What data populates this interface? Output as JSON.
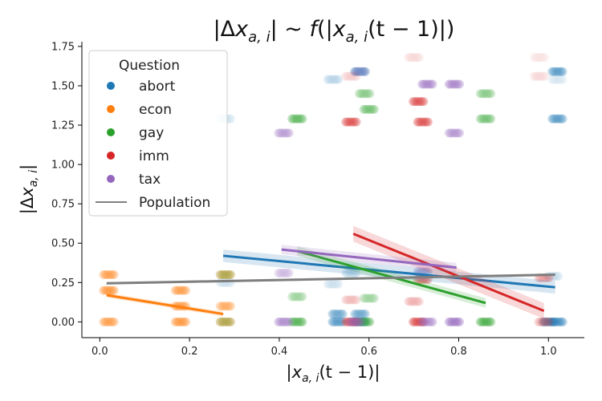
{
  "chart_data": {
    "type": "scatter",
    "title": "|Δx_{a,i}| ~ f(|x_{a,i}(t − 1)|)",
    "title_parts": {
      "pre": "|Δ",
      "x1": "x",
      "sub1": "a, i",
      "mid": "| ~ ",
      "f": "f",
      "open": "(|",
      "x2": "x",
      "sub2": "a, i",
      "t": "(t − 1)|)"
    },
    "xlabel_parts": {
      "pre": "|",
      "x": "x",
      "sub": "a, i",
      "t": "(t − 1)|"
    },
    "ylabel_parts": {
      "pre": "|Δ",
      "x": "x",
      "sub": "a, i",
      "post": "|"
    },
    "xlim": [
      -0.04,
      1.08
    ],
    "ylim": [
      -0.1,
      1.78
    ],
    "xticks": [
      0.0,
      0.2,
      0.4,
      0.6,
      0.8,
      1.0
    ],
    "xtick_labels": [
      "0.0",
      "0.2",
      "0.4",
      "0.6",
      "0.8",
      "1.0"
    ],
    "yticks": [
      0.0,
      0.25,
      0.5,
      0.75,
      1.0,
      1.25,
      1.5,
      1.75
    ],
    "ytick_labels": [
      "0.00",
      "0.25",
      "0.50",
      "0.75",
      "1.00",
      "1.25",
      "1.50",
      "1.75"
    ],
    "legend": {
      "title": "Question",
      "position": "top-left",
      "entries": [
        {
          "label": "abort",
          "color": "#1f77b4",
          "kind": "point"
        },
        {
          "label": "econ",
          "color": "#ff7f0e",
          "kind": "point"
        },
        {
          "label": "gay",
          "color": "#2ca02c",
          "kind": "point"
        },
        {
          "label": "imm",
          "color": "#d62728",
          "kind": "point"
        },
        {
          "label": "tax",
          "color": "#9467bd",
          "kind": "point"
        },
        {
          "label": "Population",
          "color": "#7f7f7f",
          "kind": "line"
        }
      ]
    },
    "series": [
      {
        "name": "abort",
        "color": "#1f77b4",
        "points": [
          {
            "x": 0.28,
            "y": 1.29,
            "a": 0.25
          },
          {
            "x": 0.52,
            "y": 1.54,
            "a": 0.35
          },
          {
            "x": 0.58,
            "y": 1.59,
            "a": 0.8
          },
          {
            "x": 1.02,
            "y": 1.59,
            "a": 0.8
          },
          {
            "x": 1.02,
            "y": 1.29,
            "a": 0.8
          },
          {
            "x": 1.02,
            "y": 1.54,
            "a": 0.2
          },
          {
            "x": 0.52,
            "y": 0.24,
            "a": 0.25
          },
          {
            "x": 0.56,
            "y": 0.31,
            "a": 0.35
          },
          {
            "x": 0.53,
            "y": 0.05,
            "a": 0.7
          },
          {
            "x": 0.58,
            "y": 0.05,
            "a": 0.7
          },
          {
            "x": 0.58,
            "y": 0.0,
            "a": 0.8
          },
          {
            "x": 0.53,
            "y": 0.0,
            "a": 0.8
          },
          {
            "x": 1.02,
            "y": 0.0,
            "a": 0.9
          },
          {
            "x": 1.0,
            "y": 0.0,
            "a": 0.9
          },
          {
            "x": 0.28,
            "y": 0.25,
            "a": 0.25
          },
          {
            "x": 0.72,
            "y": 0.31,
            "a": 0.3
          },
          {
            "x": 1.01,
            "y": 0.29,
            "a": 0.3
          }
        ]
      },
      {
        "name": "econ",
        "color": "#ff7f0e",
        "points": [
          {
            "x": 0.02,
            "y": 0.3,
            "a": 0.8
          },
          {
            "x": 0.02,
            "y": 0.2,
            "a": 0.85
          },
          {
            "x": 0.02,
            "y": 0.0,
            "a": 0.8
          },
          {
            "x": 0.18,
            "y": 0.2,
            "a": 0.8
          },
          {
            "x": 0.18,
            "y": 0.1,
            "a": 0.8
          },
          {
            "x": 0.18,
            "y": 0.0,
            "a": 0.85
          },
          {
            "x": 0.28,
            "y": 0.3,
            "a": 0.7
          },
          {
            "x": 0.28,
            "y": 0.1,
            "a": 0.7
          },
          {
            "x": 0.28,
            "y": 0.0,
            "a": 0.7
          }
        ]
      },
      {
        "name": "gay",
        "color": "#2ca02c",
        "points": [
          {
            "x": 0.44,
            "y": 1.29,
            "a": 0.8
          },
          {
            "x": 0.59,
            "y": 1.45,
            "a": 0.6
          },
          {
            "x": 0.6,
            "y": 1.35,
            "a": 0.7
          },
          {
            "x": 0.86,
            "y": 1.45,
            "a": 0.6
          },
          {
            "x": 0.86,
            "y": 1.29,
            "a": 0.7
          },
          {
            "x": 0.44,
            "y": 0.16,
            "a": 0.5
          },
          {
            "x": 0.6,
            "y": 0.15,
            "a": 0.5
          },
          {
            "x": 0.44,
            "y": 0.0,
            "a": 0.85
          },
          {
            "x": 0.59,
            "y": 0.0,
            "a": 0.85
          },
          {
            "x": 0.86,
            "y": 0.0,
            "a": 0.9
          },
          {
            "x": 0.28,
            "y": 0.3,
            "a": 0.4
          },
          {
            "x": 0.28,
            "y": 0.0,
            "a": 0.4
          }
        ]
      },
      {
        "name": "imm",
        "color": "#d62728",
        "points": [
          {
            "x": 0.56,
            "y": 1.27,
            "a": 0.85
          },
          {
            "x": 0.71,
            "y": 1.4,
            "a": 0.85
          },
          {
            "x": 0.72,
            "y": 1.27,
            "a": 0.85
          },
          {
            "x": 0.56,
            "y": 1.56,
            "a": 0.25
          },
          {
            "x": 0.7,
            "y": 1.68,
            "a": 0.2
          },
          {
            "x": 0.98,
            "y": 1.56,
            "a": 0.2
          },
          {
            "x": 0.98,
            "y": 1.68,
            "a": 0.15
          },
          {
            "x": 0.56,
            "y": 0.14,
            "a": 0.35
          },
          {
            "x": 0.7,
            "y": 0.13,
            "a": 0.4
          },
          {
            "x": 0.72,
            "y": 0.27,
            "a": 0.7
          },
          {
            "x": 0.99,
            "y": 0.28,
            "a": 0.5
          },
          {
            "x": 0.56,
            "y": 0.0,
            "a": 0.85
          },
          {
            "x": 0.71,
            "y": 0.0,
            "a": 0.9
          },
          {
            "x": 0.99,
            "y": 0.0,
            "a": 0.5
          }
        ]
      },
      {
        "name": "tax",
        "color": "#9467bd",
        "points": [
          {
            "x": 0.41,
            "y": 1.2,
            "a": 0.7
          },
          {
            "x": 0.73,
            "y": 1.51,
            "a": 0.85
          },
          {
            "x": 0.79,
            "y": 1.51,
            "a": 0.85
          },
          {
            "x": 0.79,
            "y": 1.2,
            "a": 0.75
          },
          {
            "x": 0.58,
            "y": 1.59,
            "a": 0.4
          },
          {
            "x": 0.41,
            "y": 0.31,
            "a": 0.5
          },
          {
            "x": 0.72,
            "y": 0.32,
            "a": 0.5
          },
          {
            "x": 0.41,
            "y": 0.0,
            "a": 0.8
          },
          {
            "x": 0.57,
            "y": 0.0,
            "a": 0.8
          },
          {
            "x": 0.73,
            "y": 0.0,
            "a": 0.8
          },
          {
            "x": 0.79,
            "y": 0.0,
            "a": 0.95
          }
        ]
      }
    ],
    "trend_lines": [
      {
        "name": "abort",
        "color": "#1f77b4",
        "x0": 0.275,
        "y0": 0.42,
        "x1": 1.015,
        "y1": 0.22,
        "band": 0.04
      },
      {
        "name": "econ",
        "color": "#ff7f0e",
        "x0": 0.015,
        "y0": 0.17,
        "x1": 0.275,
        "y1": 0.05,
        "band": 0.015
      },
      {
        "name": "gay",
        "color": "#2ca02c",
        "x0": 0.44,
        "y0": 0.45,
        "x1": 0.86,
        "y1": 0.12,
        "band": 0.03
      },
      {
        "name": "imm",
        "color": "#d62728",
        "x0": 0.565,
        "y0": 0.56,
        "x1": 0.99,
        "y1": 0.07,
        "band": 0.05
      },
      {
        "name": "tax",
        "color": "#9467bd",
        "x0": 0.405,
        "y0": 0.46,
        "x1": 0.795,
        "y1": 0.345,
        "band": 0.03
      },
      {
        "name": "Population",
        "color": "#7f7f7f",
        "x0": 0.015,
        "y0": 0.245,
        "x1": 1.015,
        "y1": 0.3,
        "band": 0.008
      }
    ]
  }
}
